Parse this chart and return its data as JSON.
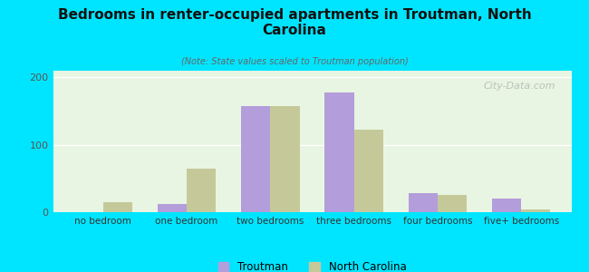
{
  "categories": [
    "no bedroom",
    "one bedroom",
    "two bedrooms",
    "three bedrooms",
    "four bedrooms",
    "five+ bedrooms"
  ],
  "troutman_values": [
    0,
    12,
    157,
    178,
    28,
    20
  ],
  "nc_values": [
    15,
    65,
    157,
    122,
    25,
    4
  ],
  "troutman_color": "#b39ddb",
  "nc_color": "#c5c99a",
  "title": "Bedrooms in renter-occupied apartments in Troutman, North\nCarolina",
  "subtitle": "(Note: State values scaled to Troutman population)",
  "ylabel_ticks": [
    0,
    100,
    200
  ],
  "ylim": [
    0,
    210
  ],
  "background_outer": "#00e5ff",
  "watermark": "City-Data.com",
  "bar_width": 0.35,
  "legend_labels": [
    "Troutman",
    "North Carolina"
  ]
}
